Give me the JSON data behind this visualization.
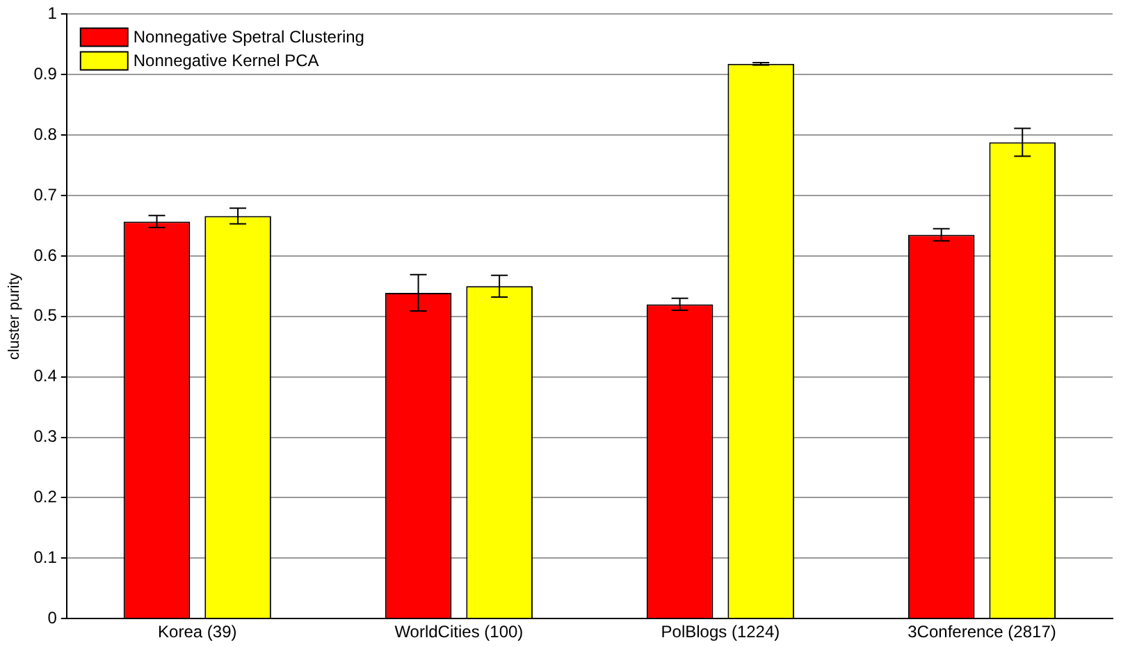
{
  "chart_data": {
    "type": "bar",
    "ylabel": "cluster purity",
    "categories": [
      "Korea (39)",
      "WorldCities (100)",
      "PolBlogs (1224)",
      "3Conference (2817)"
    ],
    "series": [
      {
        "name": "Nonnegative Spetral Clustering",
        "color": "#ff0000",
        "values": [
          0.657,
          0.539,
          0.52,
          0.635
        ],
        "errors": [
          0.01,
          0.03,
          0.01,
          0.01
        ]
      },
      {
        "name": "Nonnegative Kernel PCA",
        "color": "#ffff00",
        "values": [
          0.666,
          0.55,
          0.918,
          0.788
        ],
        "errors": [
          0.013,
          0.018,
          0.002,
          0.023
        ]
      }
    ],
    "ylim": [
      0,
      1
    ],
    "yticks": [
      0,
      0.1,
      0.2,
      0.3,
      0.4,
      0.5,
      0.6,
      0.7,
      0.8,
      0.9,
      1
    ],
    "grid": "y",
    "legend": "top left"
  }
}
